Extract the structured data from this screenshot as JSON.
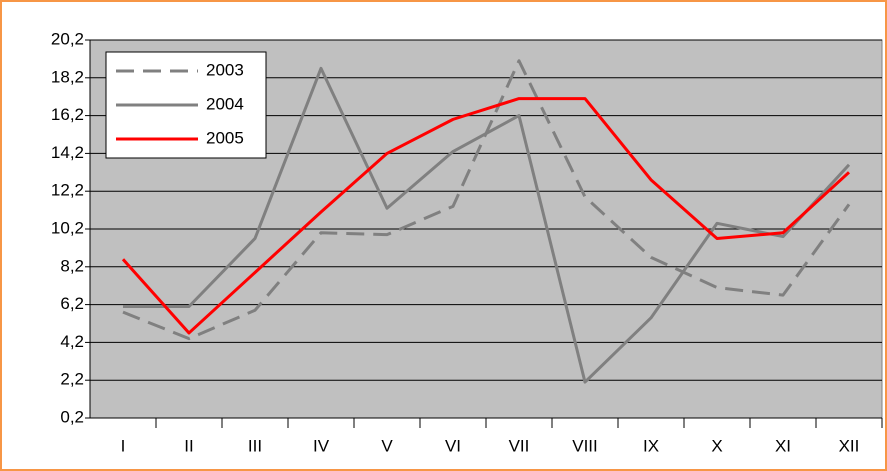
{
  "chart_data": {
    "type": "line",
    "categories": [
      "I",
      "II",
      "III",
      "IV",
      "V",
      "VI",
      "VII",
      "VIII",
      "IX",
      "X",
      "XI",
      "XII"
    ],
    "series": [
      {
        "name": "2003",
        "color": "#808080",
        "dash": true,
        "values": [
          5.8,
          4.4,
          5.9,
          10.0,
          9.9,
          11.4,
          19.1,
          11.9,
          8.7,
          7.1,
          6.7,
          11.5
        ]
      },
      {
        "name": "2004",
        "color": "#808080",
        "dash": false,
        "values": [
          6.1,
          6.1,
          9.7,
          18.7,
          11.3,
          14.3,
          16.2,
          2.1,
          5.5,
          10.5,
          9.8,
          13.6
        ]
      },
      {
        "name": "2005",
        "color": "#ff0000",
        "dash": false,
        "values": [
          8.6,
          4.7,
          7.9,
          11.1,
          14.2,
          16.0,
          17.1,
          17.1,
          12.8,
          9.7,
          10.0,
          13.2
        ]
      }
    ],
    "ylim": [
      0.2,
      20.2
    ],
    "yticks": [
      {
        "value": 0.2,
        "label": "0,2"
      },
      {
        "value": 2.2,
        "label": "2,2"
      },
      {
        "value": 4.2,
        "label": "4,2"
      },
      {
        "value": 6.2,
        "label": "6,2"
      },
      {
        "value": 8.2,
        "label": "8,2"
      },
      {
        "value": 10.2,
        "label": "10,2"
      },
      {
        "value": 12.2,
        "label": "12,2"
      },
      {
        "value": 14.2,
        "label": "14,2"
      },
      {
        "value": 16.2,
        "label": "16,2"
      },
      {
        "value": 18.2,
        "label": "18,2"
      },
      {
        "value": 20.2,
        "label": "20,2"
      }
    ],
    "grid": true,
    "legend": "top-left"
  }
}
